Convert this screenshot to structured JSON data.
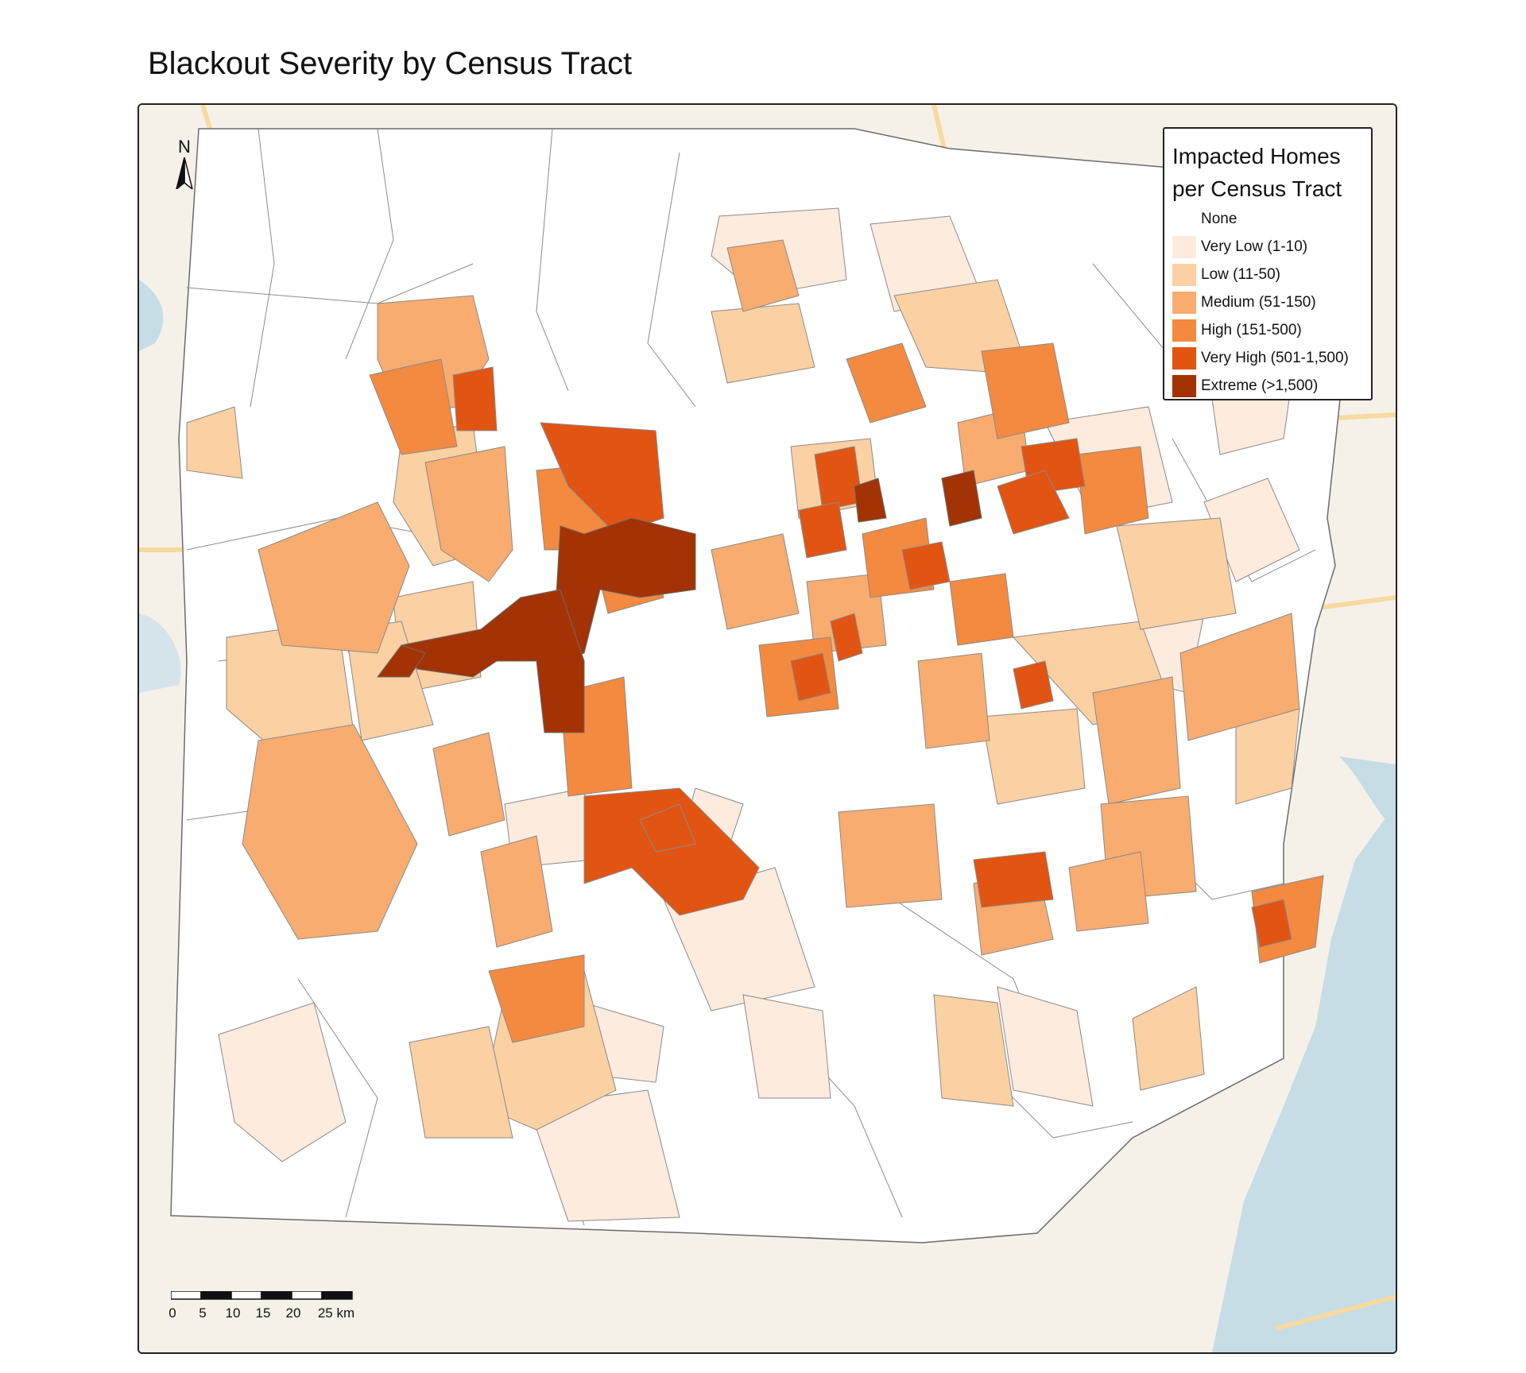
{
  "title": "Blackout Severity by Census Tract",
  "north_arrow": {
    "letter": "N",
    "icon": "north-arrow-icon"
  },
  "legend": {
    "title_line1": "Impacted Homes",
    "title_line2": "per Census Tract",
    "items": [
      {
        "label": "None",
        "color": "#ffffff"
      },
      {
        "label": "Very Low (1-10)",
        "color": "#fdebdd"
      },
      {
        "label": "Low (11-50)",
        "color": "#fbd0a2"
      },
      {
        "label": "Medium (51-150)",
        "color": "#f8ac6f"
      },
      {
        "label": "High (151-500)",
        "color": "#f38a40"
      },
      {
        "label": "Very High (501-1,500)",
        "color": "#e25412"
      },
      {
        "label": "Extreme (>1,500)",
        "color": "#a33304"
      }
    ]
  },
  "scale_bar": {
    "labels": [
      "0",
      "5",
      "10",
      "15",
      "20",
      "25 km"
    ]
  },
  "colors": {
    "basemap_land": "#f5f1e9",
    "water": "#c6dde6",
    "roads": "#f7dd9a",
    "tract_border": "#6b6b6b"
  }
}
